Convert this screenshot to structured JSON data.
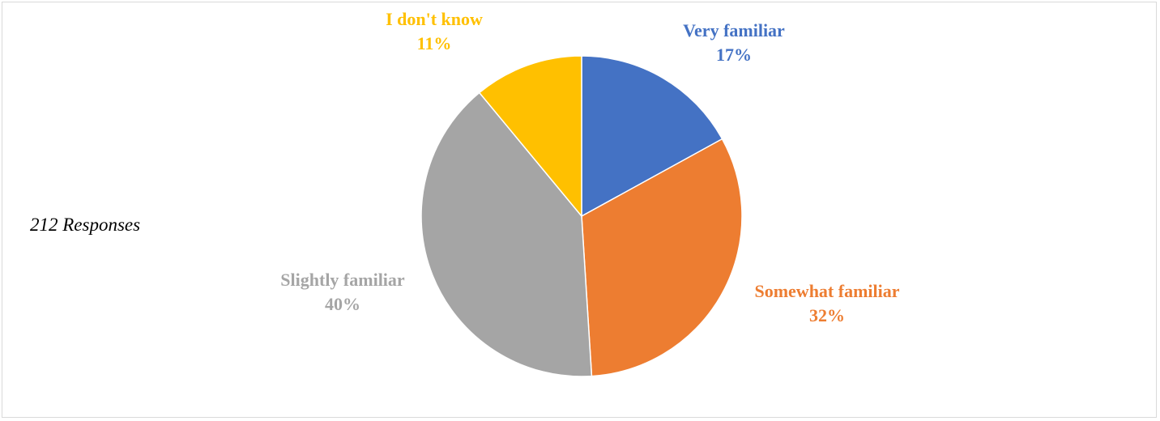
{
  "chart_data": {
    "type": "pie",
    "note": "212 Responses",
    "slices": [
      {
        "label": "Very familiar",
        "value": 17,
        "value_label": "17%",
        "color": "#4472C4"
      },
      {
        "label": "Somewhat familiar",
        "value": 32,
        "value_label": "32%",
        "color": "#ED7D31"
      },
      {
        "label": "Slightly familiar",
        "value": 40,
        "value_label": "40%",
        "color": "#A5A5A5"
      },
      {
        "label": "I don't know",
        "value": 11,
        "value_label": "11%",
        "color": "#FFC000"
      }
    ],
    "start_angle_deg": 0,
    "direction": "clockwise",
    "legend": "none",
    "data_labels": "outside"
  }
}
